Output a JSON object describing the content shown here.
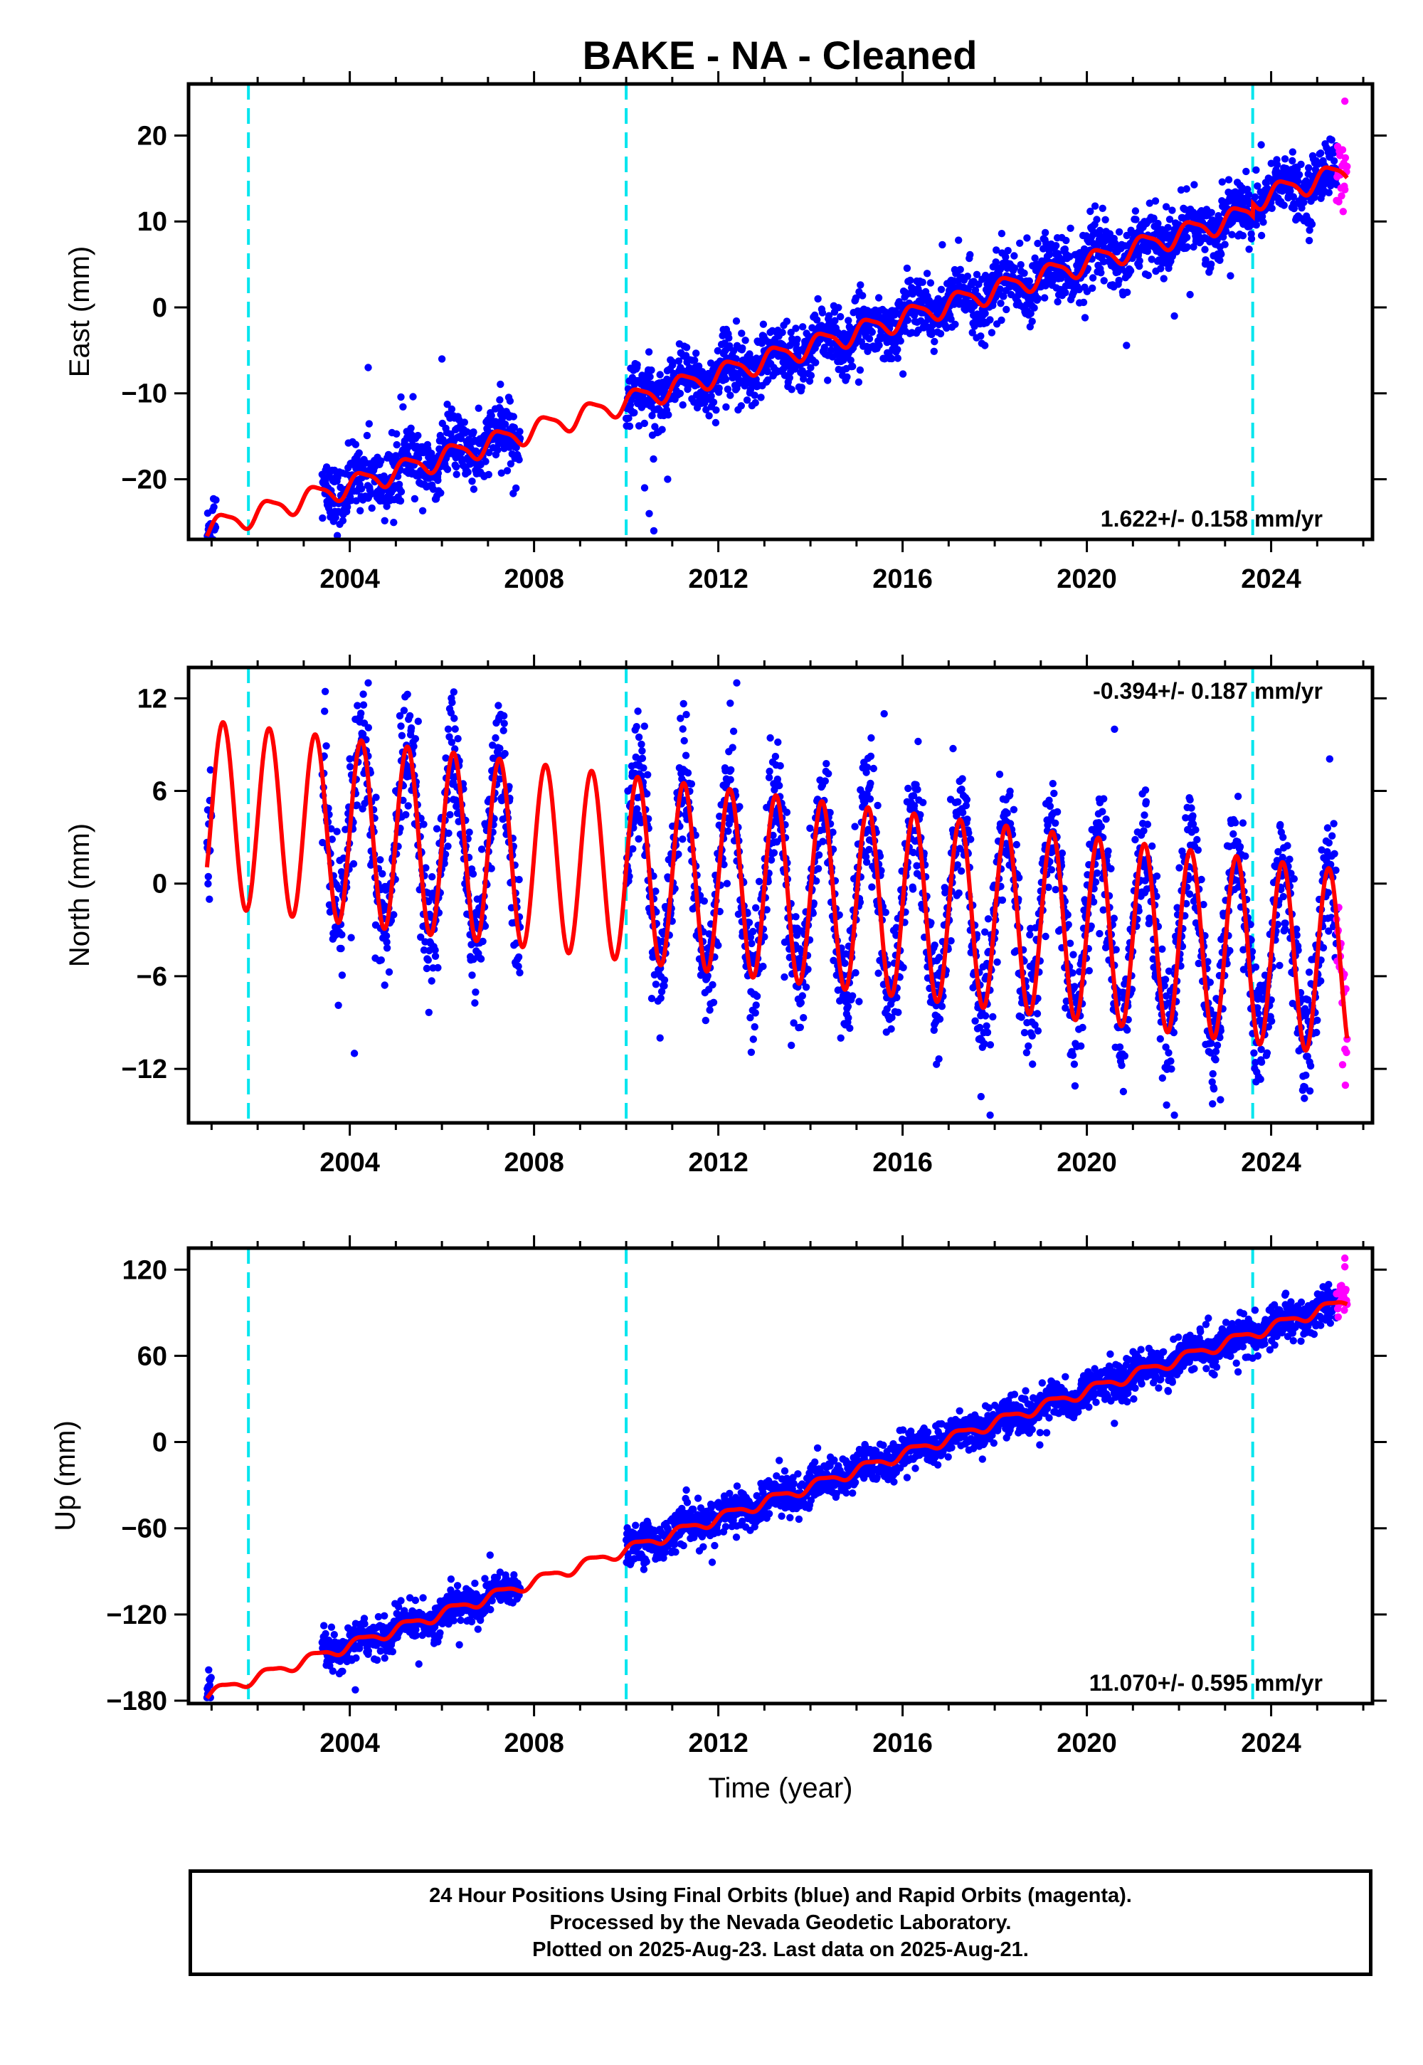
{
  "title": "BAKE  - NA - Cleaned",
  "caption": {
    "line1": "24 Hour Positions Using Final Orbits (blue) and Rapid Orbits (magenta).",
    "line2": "Processed by the Nevada Geodetic Laboratory.",
    "line3": "Plotted on 2025-Aug-23. Last data on 2025-Aug-21."
  },
  "colors": {
    "final_orbits": "#0000ff",
    "rapid_orbits": "#ff00ff",
    "model": "#ff0000",
    "breaks": "#00e5ee"
  },
  "chart_data": [
    {
      "type": "scatter",
      "ylabel": "East (mm)",
      "xlabel": "",
      "rate_label": "1.622+/- 0.158 mm/yr",
      "xlim": [
        2000.5,
        2026.2
      ],
      "ylim": [
        -27,
        26
      ],
      "xticks": [
        2004,
        2008,
        2012,
        2016,
        2020,
        2024
      ],
      "yticks": [
        -20,
        -10,
        0,
        10,
        20
      ],
      "grid": false,
      "equipment_breaks": [
        2001.8,
        2010.0,
        2023.6
      ],
      "segments": [
        {
          "start": 2000.9,
          "end": 2001.1,
          "offset": -23.0
        },
        {
          "start": 2003.4,
          "end": 2007.7,
          "offset": -19.5
        },
        {
          "start": 2010.0,
          "end": 2025.42,
          "offset": -11.5
        },
        {
          "start": 2025.42,
          "end": 2025.65,
          "offset": 14.0,
          "rapid": true
        }
      ],
      "model": {
        "t0": 2010.0,
        "y0": -11.0,
        "rate": 1.622,
        "annual_amp": 1.2,
        "semiannual_amp": 0.3,
        "scatter": 1.8,
        "offsets": [
          {
            "t": 2001.8,
            "dy": 0.0
          },
          {
            "t": 2010.0,
            "dy": 0.0
          },
          {
            "t": 2023.6,
            "dy": 1.5
          }
        ]
      },
      "outliers": [
        {
          "x": 2010.4,
          "y": -21
        },
        {
          "x": 2010.5,
          "y": -24
        },
        {
          "x": 2010.6,
          "y": -26
        },
        {
          "x": 2010.9,
          "y": -20
        },
        {
          "x": 2004.4,
          "y": -7
        },
        {
          "x": 2006.0,
          "y": -6
        },
        {
          "x": 2021.9,
          "y": -1
        },
        {
          "x": 2025.6,
          "y": 24
        }
      ]
    },
    {
      "type": "scatter",
      "ylabel": "North (mm)",
      "xlabel": "",
      "rate_label": "-0.394+/- 0.187 mm/yr",
      "xlim": [
        2000.5,
        2026.2
      ],
      "ylim": [
        -15.5,
        14
      ],
      "xticks": [
        2004,
        2008,
        2012,
        2016,
        2020,
        2024
      ],
      "yticks": [
        -12,
        -6,
        0,
        6,
        12
      ],
      "grid": false,
      "equipment_breaks": [
        2001.8,
        2010.0,
        2023.6
      ],
      "segments": [
        {
          "start": 2000.9,
          "end": 2001.0,
          "offset": 0.0
        },
        {
          "start": 2003.4,
          "end": 2007.7,
          "offset": 0.0
        },
        {
          "start": 2010.0,
          "end": 2025.42,
          "offset": 0.0
        },
        {
          "start": 2025.42,
          "end": 2025.65,
          "offset": 0.0,
          "rapid": true
        }
      ],
      "model": {
        "t0": 2010.0,
        "y0": 1.0,
        "rate": -0.394,
        "annual_amp": 6.0,
        "semiannual_amp": 0.0,
        "scatter": 2.0,
        "offsets": []
      },
      "outliers": [
        {
          "x": 2004.1,
          "y": -11
        },
        {
          "x": 2004.4,
          "y": 13
        },
        {
          "x": 2012.4,
          "y": 13
        },
        {
          "x": 2017.9,
          "y": -15
        },
        {
          "x": 2021.9,
          "y": -15
        },
        {
          "x": 2022.9,
          "y": -14
        },
        {
          "x": 2015.6,
          "y": 11
        },
        {
          "x": 2020.6,
          "y": 10
        }
      ]
    },
    {
      "type": "scatter",
      "ylabel": "Up (mm)",
      "xlabel": "Time (year)",
      "rate_label": "11.070+/- 0.595 mm/yr",
      "xlim": [
        2000.5,
        2026.2
      ],
      "ylim": [
        -182,
        135
      ],
      "xticks": [
        2004,
        2008,
        2012,
        2016,
        2020,
        2024
      ],
      "yticks": [
        -180,
        -120,
        -60,
        0,
        60,
        120
      ],
      "grid": false,
      "equipment_breaks": [
        2001.8,
        2010.0,
        2023.6
      ],
      "segments": [
        {
          "start": 2000.9,
          "end": 2001.0,
          "offset": 0.0
        },
        {
          "start": 2003.4,
          "end": 2007.7,
          "offset": 0.0
        },
        {
          "start": 2010.0,
          "end": 2025.42,
          "offset": 0.0
        },
        {
          "start": 2025.42,
          "end": 2025.65,
          "offset": 0.0,
          "rapid": true
        }
      ],
      "model": {
        "t0": 2010.0,
        "y0": -75.0,
        "rate": 11.07,
        "annual_amp": 3.5,
        "semiannual_amp": 1.0,
        "scatter": 6.5,
        "offsets": []
      },
      "outliers": [
        {
          "x": 2025.6,
          "y": 128
        },
        {
          "x": 2025.6,
          "y": 122
        }
      ]
    }
  ]
}
